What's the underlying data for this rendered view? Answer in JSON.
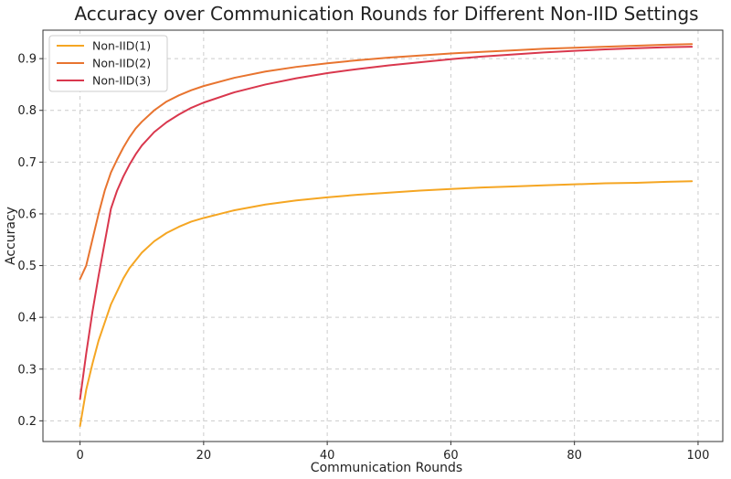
{
  "chart_data": {
    "type": "line",
    "title": "Accuracy over Communication Rounds for Different Non-IID Settings",
    "xlabel": "Communication Rounds",
    "ylabel": "Accuracy",
    "xlim": [
      -6,
      104
    ],
    "ylim": [
      0.16,
      0.955
    ],
    "xticks": [
      0,
      20,
      40,
      60,
      80,
      100
    ],
    "yticks": [
      0.2,
      0.3,
      0.4,
      0.5,
      0.6,
      0.7,
      0.8,
      0.9
    ],
    "xtick_labels": [
      "0",
      "20",
      "40",
      "60",
      "80",
      "100"
    ],
    "ytick_labels": [
      "0.2",
      "0.3",
      "0.4",
      "0.5",
      "0.6",
      "0.7",
      "0.8",
      "0.9"
    ],
    "grid": true,
    "legend_position": "top-left",
    "x": [
      0,
      1,
      2,
      3,
      4,
      5,
      6,
      7,
      8,
      9,
      10,
      12,
      14,
      16,
      18,
      20,
      25,
      30,
      35,
      40,
      45,
      50,
      55,
      60,
      65,
      70,
      75,
      80,
      85,
      90,
      95,
      99
    ],
    "series": [
      {
        "name": "Non-IID(1)",
        "color": "#f5a623",
        "values": [
          0.19,
          0.26,
          0.31,
          0.355,
          0.39,
          0.425,
          0.45,
          0.475,
          0.495,
          0.51,
          0.525,
          0.547,
          0.563,
          0.575,
          0.585,
          0.592,
          0.607,
          0.618,
          0.626,
          0.632,
          0.637,
          0.641,
          0.645,
          0.648,
          0.651,
          0.653,
          0.655,
          0.657,
          0.659,
          0.66,
          0.662,
          0.663
        ]
      },
      {
        "name": "Non-IID(2)",
        "color": "#e8742f",
        "values": [
          0.474,
          0.5,
          0.55,
          0.6,
          0.645,
          0.68,
          0.705,
          0.728,
          0.748,
          0.765,
          0.778,
          0.8,
          0.817,
          0.829,
          0.839,
          0.847,
          0.863,
          0.875,
          0.884,
          0.891,
          0.897,
          0.902,
          0.906,
          0.91,
          0.913,
          0.916,
          0.919,
          0.921,
          0.923,
          0.925,
          0.927,
          0.928
        ]
      },
      {
        "name": "Non-IID(3)",
        "color": "#d9374d",
        "values": [
          0.242,
          0.33,
          0.41,
          0.48,
          0.545,
          0.61,
          0.645,
          0.672,
          0.695,
          0.715,
          0.732,
          0.758,
          0.777,
          0.792,
          0.805,
          0.815,
          0.835,
          0.85,
          0.862,
          0.872,
          0.88,
          0.887,
          0.893,
          0.899,
          0.904,
          0.908,
          0.912,
          0.915,
          0.918,
          0.92,
          0.922,
          0.923
        ]
      }
    ]
  }
}
